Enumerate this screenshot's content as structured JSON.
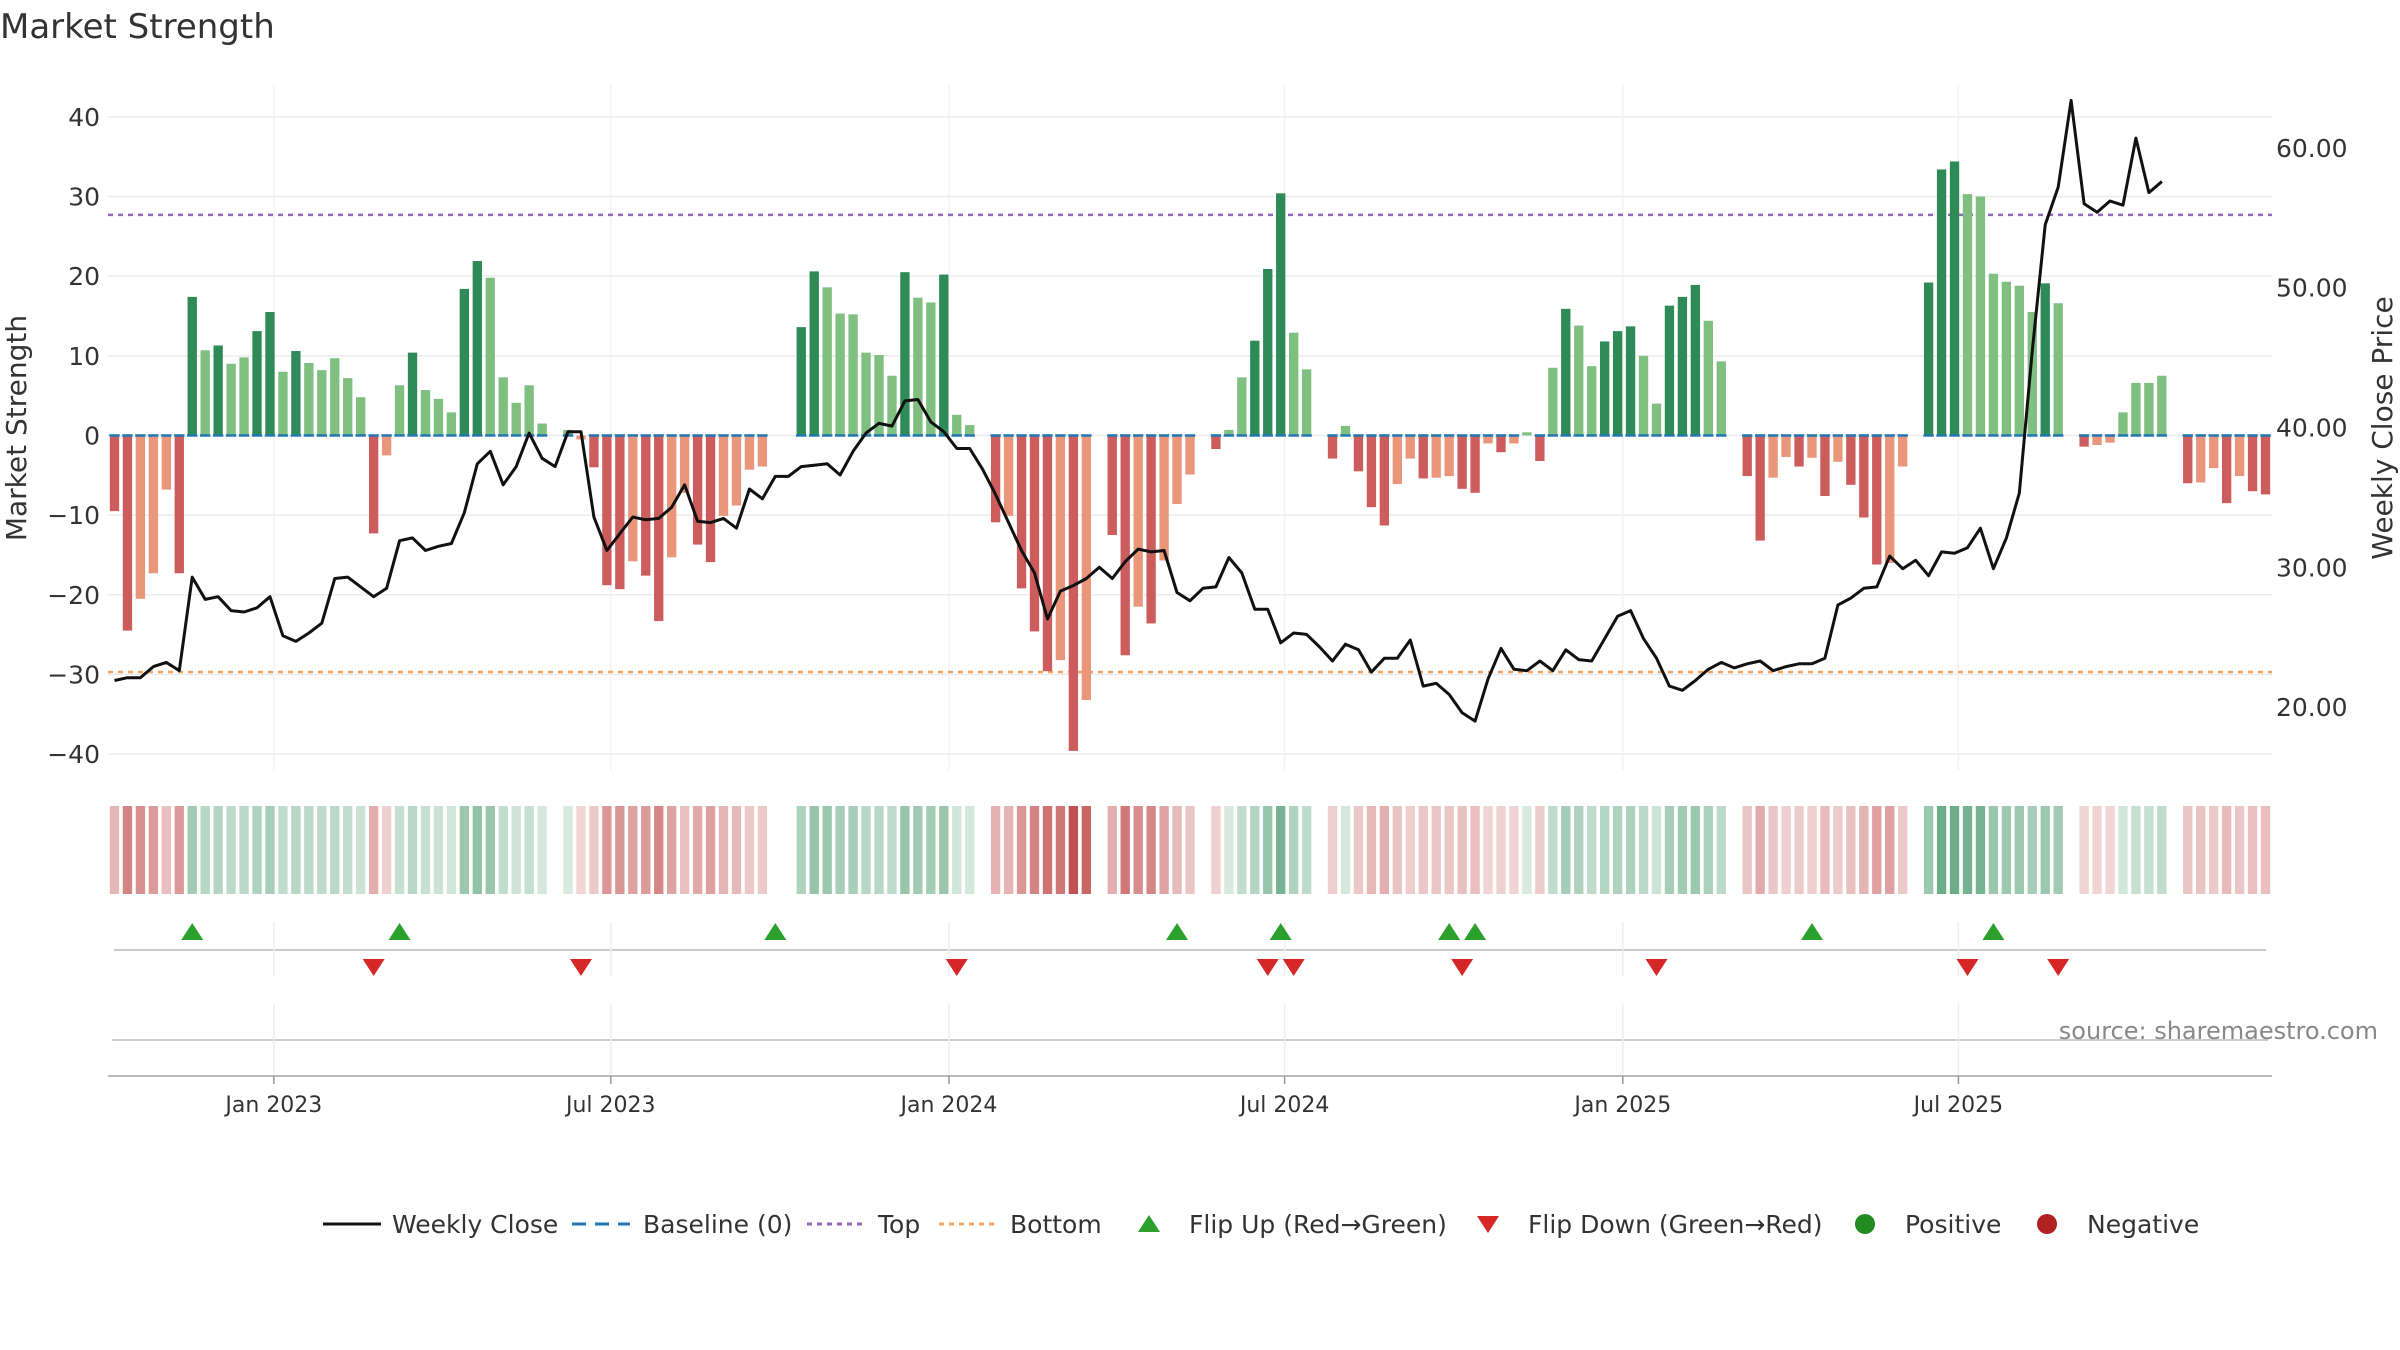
{
  "chart_data": {
    "type": "bar",
    "title": "Market Strength",
    "ylabel": "Market Strength",
    "y2label": "Weekly Close Price",
    "ylim": [
      -42,
      44
    ],
    "y2lim": [
      15.5,
      64.5
    ],
    "yticks": [
      40,
      30,
      20,
      10,
      0,
      -10,
      -20,
      -30,
      -40
    ],
    "y2ticks": [
      60,
      50,
      40,
      30,
      20
    ],
    "y2tick_labels": [
      "60.00",
      "50.00",
      "40.00",
      "30.00",
      "20.00"
    ],
    "top_line": 27.7,
    "bottom_line": -29.7,
    "x_start": "2022-10-07",
    "x_end": "2025-09-26",
    "xtick_labels": [
      "Jan 2023",
      "Jul 2023",
      "Jan 2024",
      "Jul 2024",
      "Jan 2025",
      "Jul 2025"
    ],
    "xtick_weeks": [
      12.3,
      38.3,
      64.4,
      90.3,
      116.4,
      142.3
    ],
    "strength": [
      -9.5,
      -24.5,
      -20.5,
      -17.3,
      -6.8,
      -17.3,
      17.4,
      10.7,
      11.3,
      9,
      9.8,
      13.1,
      15.5,
      8,
      10.6,
      9.1,
      8.2,
      9.7,
      7.2,
      4.8,
      -12.3,
      -2.5,
      6.3,
      10.4,
      5.7,
      4.6,
      2.9,
      18.4,
      21.9,
      19.8,
      7.3,
      4.1,
      6.3,
      1.5,
      0,
      0.7,
      -0.5,
      -4,
      -18.8,
      -19.3,
      -15.8,
      -17.6,
      -23.3,
      -15.3,
      -7.2,
      -13.7,
      -15.9,
      -10.1,
      -8.8,
      -4.3,
      -3.9,
      0,
      0,
      13.6,
      20.6,
      18.6,
      15.3,
      15.2,
      10.4,
      10.1,
      7.5,
      20.5,
      17.3,
      16.7,
      20.2,
      2.6,
      1.3,
      0,
      -10.9,
      -10.1,
      -19.2,
      -24.6,
      -29.6,
      -28.2,
      -39.6,
      -33.2,
      0,
      -12.5,
      -27.6,
      -21.5,
      -23.6,
      -15.7,
      -8.6,
      -4.9,
      0,
      -1.7,
      0.7,
      7.3,
      11.9,
      20.9,
      30.4,
      12.9,
      8.3,
      0,
      -2.9,
      1.2,
      -4.5,
      -9,
      -11.3,
      -6.1,
      -2.9,
      -5.4,
      -5.3,
      -5.1,
      -6.7,
      -7.2,
      -1,
      -2.1,
      -1,
      0.4,
      -3.2,
      8.5,
      15.9,
      13.8,
      8.7,
      11.8,
      13.1,
      13.7,
      10,
      4,
      16.3,
      17.4,
      18.9,
      14.4,
      9.3,
      0,
      -5.1,
      -13.2,
      -5.3,
      -2.7,
      -3.9,
      -2.8,
      -7.6,
      -3.3,
      -6.2,
      -10.3,
      -16.2,
      -16,
      -3.9,
      0,
      19.2,
      33.4,
      34.4,
      30.3,
      30,
      20.3,
      19.3,
      18.8,
      15.5,
      19.1,
      16.6,
      0,
      -1.4,
      -1.2,
      -0.9,
      2.9,
      6.6,
      6.6,
      7.5,
      0,
      -6,
      -5.9,
      -4.1,
      -8.5,
      -5.1,
      -7,
      -7.4
    ],
    "weekly_close": [
      21.9,
      22.1,
      22.1,
      22.9,
      23.2,
      22.6,
      29.3,
      27.7,
      27.9,
      26.9,
      26.8,
      27.1,
      27.9,
      25.1,
      24.7,
      25.3,
      26,
      29.2,
      29.3,
      28.6,
      27.9,
      28.5,
      31.9,
      32.1,
      31.2,
      31.5,
      31.7,
      33.9,
      37.4,
      38.3,
      35.9,
      37.2,
      39.6,
      37.8,
      37.2,
      39.7,
      39.7,
      33.6,
      31.2,
      32.4,
      33.6,
      33.4,
      33.5,
      34.3,
      35.9,
      33.3,
      33.2,
      33.5,
      32.8,
      35.6,
      34.9,
      36.5,
      36.5,
      37.2,
      37.3,
      37.4,
      36.6,
      38.3,
      39.6,
      40.3,
      40.1,
      41.9,
      42,
      40.4,
      39.7,
      38.5,
      38.5,
      37,
      35.2,
      33.2,
      31.2,
      29.6,
      26.3,
      28.3,
      28.7,
      29.2,
      30,
      29.2,
      30.4,
      31.3,
      31.1,
      31.2,
      28.2,
      27.6,
      28.5,
      28.6,
      30.7,
      29.6,
      27,
      27,
      24.6,
      25.3,
      25.2,
      24.3,
      23.3,
      24.5,
      24.1,
      22.5,
      23.5,
      23.5,
      24.8,
      21.5,
      21.7,
      20.9,
      19.6,
      19,
      22,
      24.2,
      22.7,
      22.6,
      23.3,
      22.6,
      24.1,
      23.4,
      23.3,
      24.9,
      26.5,
      26.9,
      24.9,
      23.5,
      21.5,
      21.2,
      21.9,
      22.7,
      23.2,
      22.8,
      23.1,
      23.3,
      22.6,
      22.9,
      23.1,
      23.1,
      23.5,
      27.3,
      27.8,
      28.5,
      28.6,
      30.8,
      29.9,
      30.5,
      29.4,
      31.1,
      31,
      31.4,
      32.8,
      29.9,
      32.1,
      35.3,
      45.5,
      54.5,
      57.2,
      63.4,
      56,
      55.4,
      56.2,
      55.9,
      60.7,
      56.8,
      57.6
    ],
    "flip_up_weeks": [
      6,
      22,
      51,
      82,
      90,
      103,
      105,
      131,
      145
    ],
    "flip_down_weeks": [
      20,
      36,
      65,
      89,
      91,
      104,
      119,
      143,
      150
    ],
    "legend": [
      {
        "key": "close",
        "label": "Weekly Close"
      },
      {
        "key": "baseline",
        "label": "Baseline (0)"
      },
      {
        "key": "top",
        "label": "Top"
      },
      {
        "key": "bottom",
        "label": "Bottom"
      },
      {
        "key": "flipup",
        "label": "Flip Up (Red→Green)"
      },
      {
        "key": "flipdown",
        "label": "Flip Down (Green→Red)"
      },
      {
        "key": "positive",
        "label": "Positive"
      },
      {
        "key": "negative",
        "label": "Negative"
      }
    ]
  },
  "colors": {
    "strong_green": "#2e8b57",
    "light_green": "#7fbf7f",
    "strong_red": "#cd5c5c",
    "light_red": "#e9967a",
    "baseline": "#1f77b4",
    "top": "#9467bd",
    "bottom": "#f4a460",
    "close": "#111111",
    "flip_up": "#2ca02c",
    "flip_down": "#d62728",
    "positive": "#228b22",
    "negative": "#b22222",
    "source_text": "#888888"
  },
  "source": "source: sharemaestro.com"
}
